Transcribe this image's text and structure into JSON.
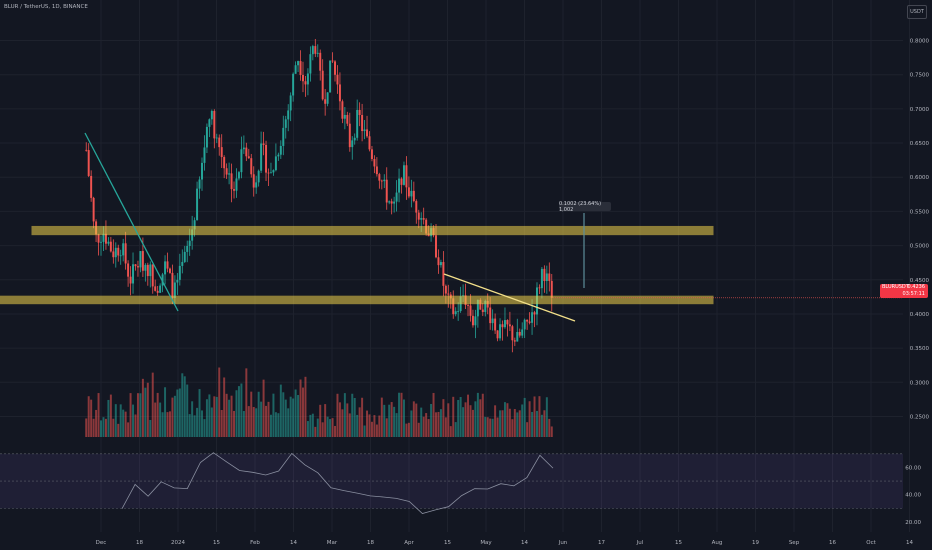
{
  "header": {
    "title": "BLUR / TetherUS, 1D, BINANCE",
    "currency": "USDT"
  },
  "price_tag": {
    "symbol": "BLURUSDT",
    "price": "0.4236",
    "countdown": "03:57:11"
  },
  "measure": {
    "label": "0.1002 (23.64%) 1,002"
  },
  "colors": {
    "up": "#26a69a",
    "down": "#ef5350",
    "zone": "#f0d24a",
    "trend_line_1": "#26a69a",
    "trend_line_2": "#f3e08a",
    "rsi": "#8a8fa0",
    "background": "#131722"
  },
  "chart_data": {
    "type": "candlestick",
    "price_axis": {
      "ticks": [
        "0.8000",
        "0.7500",
        "0.7000",
        "0.6500",
        "0.6000",
        "0.5500",
        "0.5000",
        "0.4500",
        "0.4000",
        "0.3500",
        "0.3000",
        "0.2500"
      ],
      "ylim": [
        0.22,
        0.83
      ]
    },
    "x_axis": {
      "ticks": [
        "Dec",
        "18",
        "2024",
        "15",
        "Feb",
        "14",
        "Mar",
        "18",
        "Apr",
        "15",
        "May",
        "14",
        "Jun",
        "17",
        "Jul",
        "15",
        "Aug",
        "19",
        "Sep",
        "16",
        "Oct",
        "14"
      ]
    },
    "rsi_axis": {
      "ticks": [
        "60.00",
        "40.00",
        "20.00"
      ],
      "ylim": [
        20,
        75
      ],
      "bands": [
        70,
        30
      ],
      "midline": 50
    },
    "close_path": [
      0.64,
      0.51,
      0.52,
      0.49,
      0.5,
      0.45,
      0.48,
      0.47,
      0.44,
      0.47,
      0.43,
      0.47,
      0.52,
      0.6,
      0.7,
      0.65,
      0.61,
      0.58,
      0.66,
      0.59,
      0.64,
      0.6,
      0.65,
      0.7,
      0.78,
      0.74,
      0.8,
      0.71,
      0.77,
      0.71,
      0.65,
      0.69,
      0.65,
      0.62,
      0.58,
      0.55,
      0.61,
      0.57,
      0.55,
      0.52,
      0.49,
      0.42,
      0.4,
      0.43,
      0.39,
      0.42,
      0.4,
      0.37,
      0.38,
      0.36,
      0.38,
      0.41,
      0.47,
      0.4236
    ],
    "zones": [
      {
        "top": 0.528,
        "bottom": 0.516
      },
      {
        "top": 0.426,
        "bottom": 0.415
      }
    ],
    "last_price": 0.4236
  }
}
